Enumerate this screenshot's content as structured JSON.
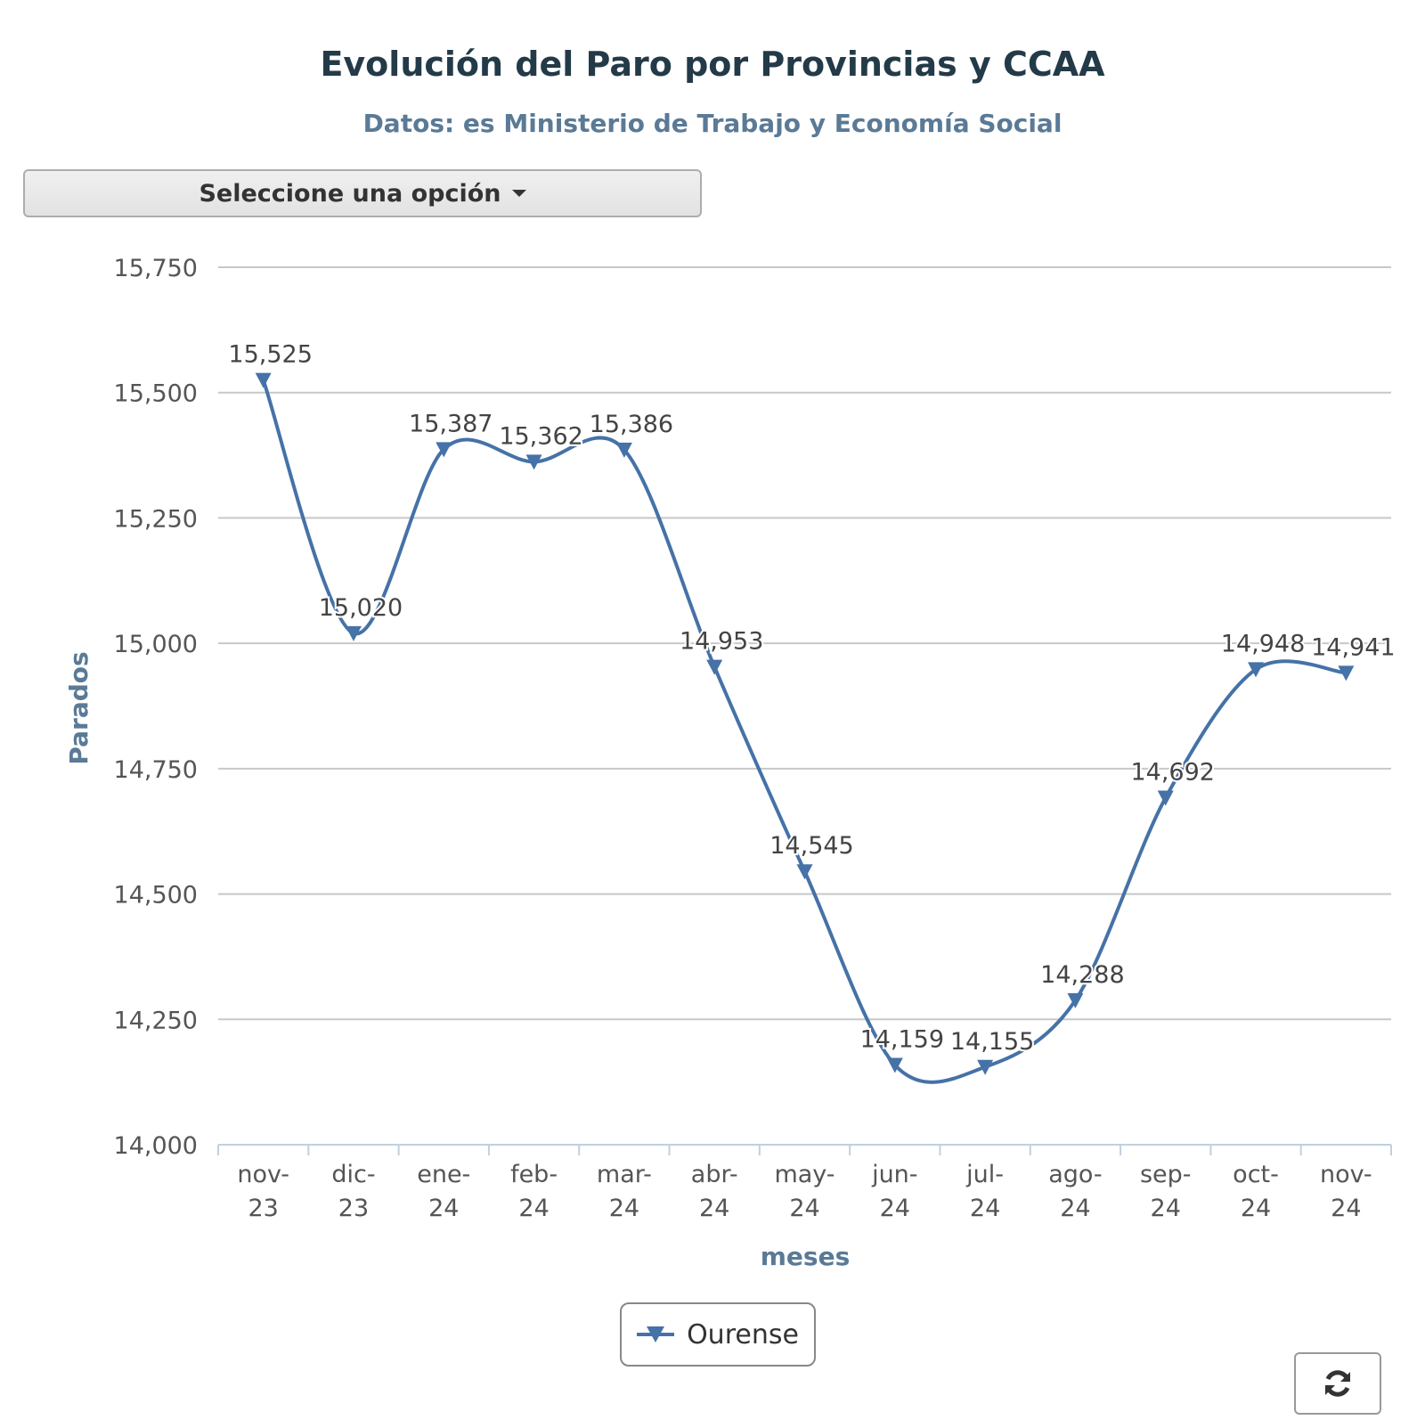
{
  "header": {
    "title": "Evolución del Paro por Provincias y CCAA",
    "subtitle": "Datos: es Ministerio de Trabajo y Economía Social"
  },
  "controls": {
    "select_label": "Seleccione una opción",
    "refresh_icon": "refresh-icon"
  },
  "colors": {
    "series": "#4572a7",
    "title": "#233a48",
    "subtitle": "#5a7a96",
    "axis_title": "#5a7a96",
    "grid": "#c8c8c8"
  },
  "chart_data": {
    "type": "line",
    "title": "Evolución del Paro por Provincias y CCAA",
    "subtitle": "Datos: es Ministerio de Trabajo y Economía Social",
    "xlabel": "meses",
    "ylabel": "Parados",
    "categories": [
      [
        "nov-",
        "23"
      ],
      [
        "dic-",
        "23"
      ],
      [
        "ene-",
        "24"
      ],
      [
        "feb-",
        "24"
      ],
      [
        "mar-",
        "24"
      ],
      [
        "abr-",
        "24"
      ],
      [
        "may-",
        "24"
      ],
      [
        "jun-",
        "24"
      ],
      [
        "jul-",
        "24"
      ],
      [
        "ago-",
        "24"
      ],
      [
        "sep-",
        "24"
      ],
      [
        "oct-",
        "24"
      ],
      [
        "nov-",
        "24"
      ]
    ],
    "ylim": [
      14000,
      15750
    ],
    "yticks": [
      14000,
      14250,
      14500,
      14750,
      15000,
      15250,
      15500,
      15750
    ],
    "ytick_labels": [
      "14,000",
      "14,250",
      "14,500",
      "14,750",
      "15,000",
      "15,250",
      "15,500",
      "15,750"
    ],
    "grid": true,
    "legend_position": "bottom-center",
    "marker": "triangle-down",
    "smooth": true,
    "series": [
      {
        "name": "Ourense",
        "values": [
          15525,
          15020,
          15387,
          15362,
          15386,
          14953,
          14545,
          14159,
          14155,
          14288,
          14692,
          14948,
          14941
        ],
        "labels": [
          "15,525",
          "15,020",
          "15,387",
          "15,362",
          "15,386",
          "14,953",
          "14,545",
          "14,159",
          "14,155",
          "14,288",
          "14,692",
          "14,948",
          "14,941"
        ]
      }
    ]
  }
}
